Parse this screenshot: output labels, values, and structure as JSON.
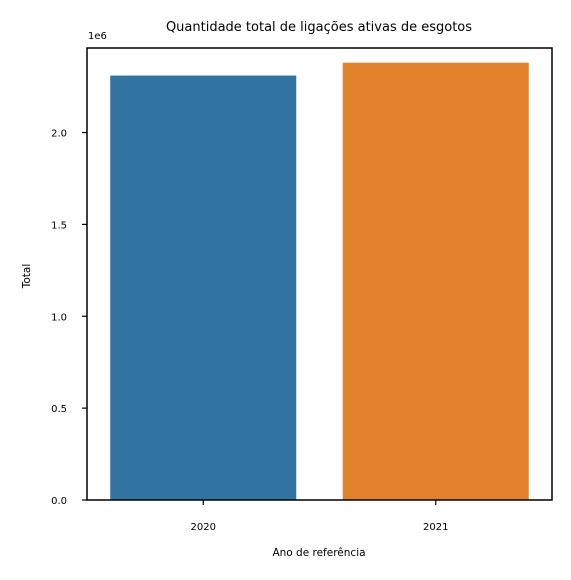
{
  "chart_data": {
    "type": "bar",
    "title": "Quantidade total de ligações ativas de esgotos",
    "xlabel": "Ano de referência",
    "ylabel": "Total",
    "y_offset_label": "1e6",
    "categories": [
      "2020",
      "2021"
    ],
    "values": [
      2310000,
      2380000
    ],
    "ylim": [
      0,
      2460000
    ],
    "yticks": [
      {
        "value": 0,
        "label": "0.0"
      },
      {
        "value": 500000,
        "label": "0.5"
      },
      {
        "value": 1000000,
        "label": "1.0"
      },
      {
        "value": 1500000,
        "label": "1.5"
      },
      {
        "value": 2000000,
        "label": "2.0"
      }
    ],
    "colors": [
      "#3274a1",
      "#e1812c"
    ],
    "grid": false
  }
}
